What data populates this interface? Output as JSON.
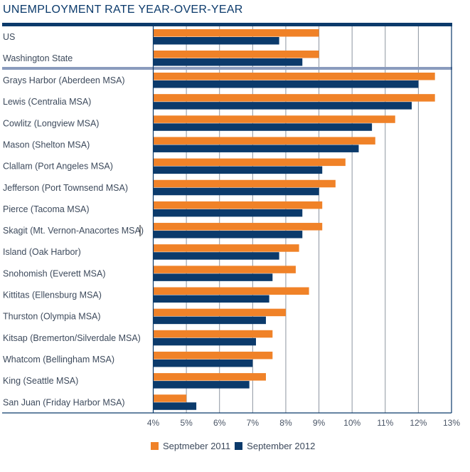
{
  "colors": {
    "series_2011": "#f08228",
    "series_2012": "#0b3a6b",
    "frame": "#0b3a6b",
    "separator": "#8a9bbd",
    "grid": "#8c94a0"
  },
  "chart_data": {
    "type": "bar",
    "orientation": "horizontal",
    "title": "UNEMPLOYMENT RATE YEAR-OVER-YEAR",
    "xlabel": "",
    "ylabel": "",
    "xlim": [
      4,
      13
    ],
    "x_ticks": [
      "4%",
      "5%",
      "6%",
      "7%",
      "8%",
      "9%",
      "10%",
      "11%",
      "12%",
      "13%"
    ],
    "x_tick_values": [
      4,
      5,
      6,
      7,
      8,
      9,
      10,
      11,
      12,
      13
    ],
    "grid": "vertical",
    "legend_position": "bottom",
    "separator_after_index": 1,
    "categories": [
      "US",
      "Washington State",
      "Grays Harbor (Aberdeen MSA)",
      "Lewis (Centralia MSA)",
      "Cowlitz (Longview MSA)",
      "Mason (Shelton MSA)",
      "Clallam (Port Angeles MSA)",
      "Jefferson (Port Townsend MSA)",
      "Pierce (Tacoma MSA)",
      "Skagit (Mt. Vernon-Anacortes MSA)",
      "Island (Oak Harbor)",
      "Snohomish (Everett MSA)",
      "Kittitas (Ellensburg MSA)",
      "Thurston (Olympia MSA)",
      "Kitsap (Bremerton/Silverdale MSA)",
      "Whatcom (Bellingham MSA)",
      "King (Seattle MSA)",
      "San Juan (Friday Harbor MSA)"
    ],
    "series": [
      {
        "name": "Septmeber 2011",
        "color_key": "series_2011",
        "values": [
          9.0,
          9.0,
          12.5,
          12.5,
          11.3,
          10.7,
          9.8,
          9.5,
          9.1,
          9.1,
          8.4,
          8.3,
          8.7,
          8.0,
          7.6,
          7.6,
          7.4,
          5.0
        ]
      },
      {
        "name": "September 2012",
        "color_key": "series_2012",
        "values": [
          7.8,
          8.5,
          12.0,
          11.8,
          10.6,
          10.2,
          9.1,
          9.0,
          8.5,
          8.5,
          7.8,
          7.6,
          7.5,
          7.4,
          7.1,
          7.0,
          6.9,
          5.3
        ]
      }
    ]
  }
}
